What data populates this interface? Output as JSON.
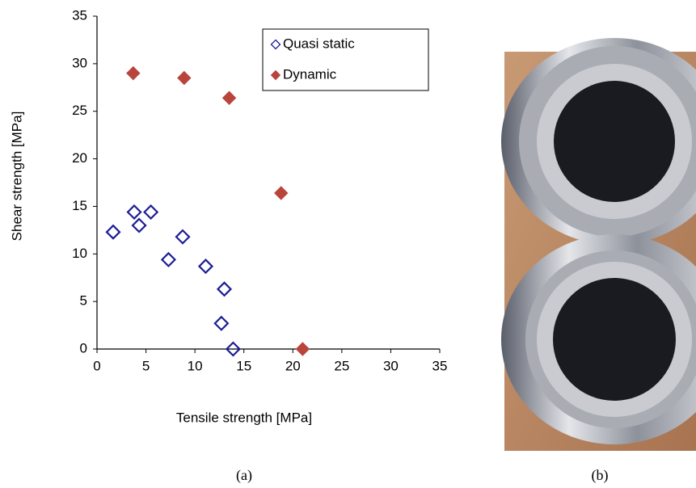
{
  "chart_data": {
    "type": "scatter",
    "x_label": "Tensile strength [MPa]",
    "y_label": "Shear strength [MPa]",
    "xlim": [
      0,
      35
    ],
    "xticks": [
      0,
      5,
      10,
      15,
      20,
      25,
      30,
      35
    ],
    "ylim": [
      0,
      35
    ],
    "yticks": [
      0,
      5,
      10,
      15,
      20,
      25,
      30,
      35
    ],
    "grid": false,
    "legend": "upper right",
    "series": [
      {
        "name": "Quasi static",
        "color": "#1c1c96",
        "marker": "open",
        "x": [
          1.65,
          3.8,
          4.3,
          5.5,
          8.75,
          7.3,
          11.1,
          13.0,
          12.7,
          13.9
        ],
        "values": [
          12.3,
          14.4,
          13.0,
          14.4,
          11.8,
          9.4,
          8.7,
          6.3,
          2.7,
          0
        ]
      },
      {
        "name": "Dynamic",
        "color": "#b8443c",
        "marker": "filled",
        "x": [
          3.7,
          8.9,
          13.5,
          18.8,
          21.0
        ],
        "values": [
          29.0,
          28.5,
          26.4,
          16.4,
          0
        ]
      }
    ]
  },
  "captions": [
    "(a)",
    "(b)"
  ]
}
